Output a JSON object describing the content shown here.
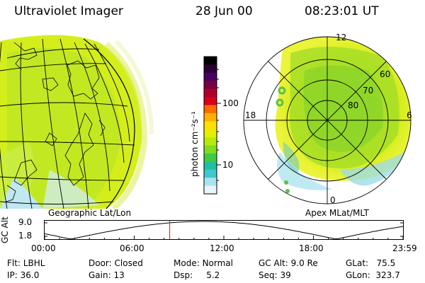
{
  "header": {
    "instrument": "Ultraviolet Imager",
    "date": "28 Jun 00",
    "time": "08:23:01 UT"
  },
  "left_panel": {
    "label": "Geographic Lat/Lon"
  },
  "right_panel": {
    "label": "Apex MLat/MLT",
    "mlt_labels": [
      "12",
      "18",
      "6",
      "0"
    ],
    "lat_labels": [
      "60",
      "70",
      "80"
    ]
  },
  "colorbar": {
    "unit_label": "photon cm⁻²s⁻¹",
    "ticks": [
      "100",
      "10"
    ],
    "colors": [
      "#000000",
      "#2b0035",
      "#4a0060",
      "#7a0040",
      "#b0002a",
      "#d8001a",
      "#ff6a00",
      "#ffb000",
      "#ffe000",
      "#e4f000",
      "#b8ea10",
      "#7fdc20",
      "#40cc40",
      "#20c0a0",
      "#40c8d0",
      "#a8e4ee",
      "#e8f6f8"
    ]
  },
  "timeline": {
    "axis_title": "GC Alt",
    "y_ticks": [
      "9.0",
      "1.8"
    ],
    "x_ticks": [
      "00:00",
      "06:00",
      "12:00",
      "18:00",
      "23:59"
    ],
    "current_time_fraction": 0.349
  },
  "info": [
    [
      {
        "k": "Flt:",
        "v": "LBHL"
      },
      {
        "k": "Door:",
        "v": "Closed"
      },
      {
        "k": "Mode:",
        "v": "Normal"
      },
      {
        "k": "GC Alt:",
        "v": "9.0 Re"
      },
      {
        "k": "GLat:",
        "v": "75.5"
      }
    ],
    [
      {
        "k": "IP:",
        "v": "36.0"
      },
      {
        "k": "Gain:",
        "v": "13"
      },
      {
        "k": "Dsp:",
        "v": "5.2"
      },
      {
        "k": "Seq:",
        "v": "39"
      },
      {
        "k": "GLon:",
        "v": "323.7"
      }
    ]
  ]
}
